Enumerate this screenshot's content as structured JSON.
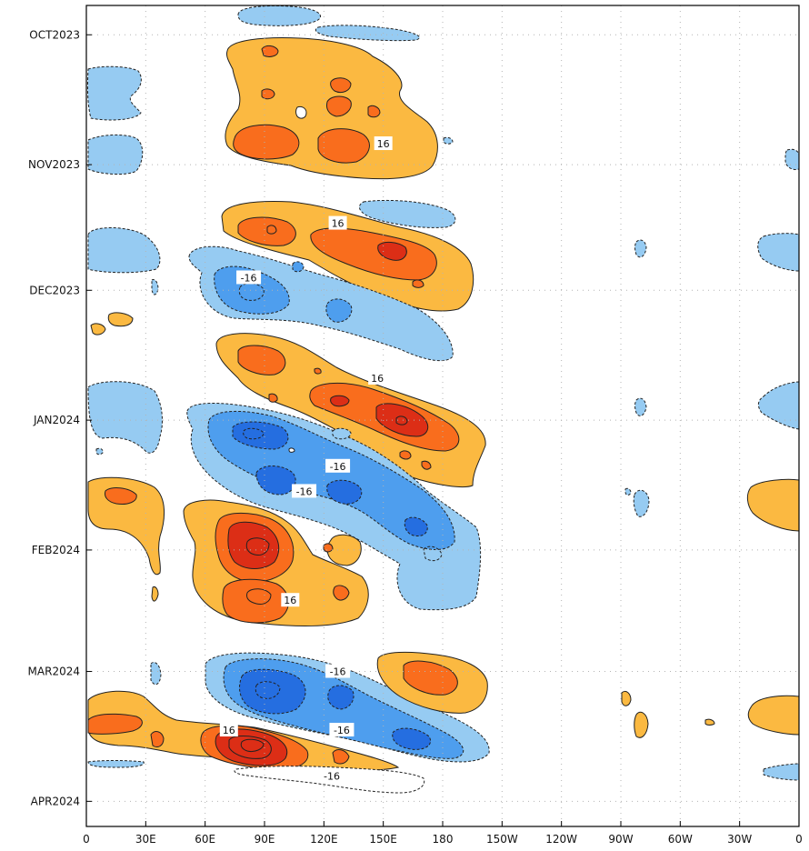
{
  "chart_data": {
    "type": "heatmap",
    "title": "",
    "xlabel": "",
    "ylabel": "",
    "x_ticks": [
      "0",
      "30E",
      "60E",
      "90E",
      "120E",
      "150E",
      "180",
      "150W",
      "120W",
      "90W",
      "60W",
      "30W",
      "0"
    ],
    "x_tick_degrees_east": [
      0,
      30,
      60,
      90,
      120,
      150,
      180,
      210,
      240,
      270,
      300,
      330,
      360
    ],
    "xlim": [
      0,
      360
    ],
    "y_ticks": [
      "OCT2023",
      "NOV2023",
      "DEC2023",
      "JAN2024",
      "FEB2024",
      "MAR2024",
      "APR2024"
    ],
    "y_tick_dates": [
      "2023-10-01",
      "2023-11-01",
      "2023-12-01",
      "2024-01-01",
      "2024-02-01",
      "2024-03-01",
      "2024-04-01"
    ],
    "ylim": [
      "2023-09-24",
      "2024-04-07"
    ],
    "grid": true,
    "contour_interval": 8,
    "contour_labels": [
      {
        "text": "16",
        "lon": 150,
        "date": "2023-10-27"
      },
      {
        "text": "16",
        "lon": 127,
        "date": "2023-11-15"
      },
      {
        "text": "-16",
        "lon": 82,
        "date": "2023-11-28"
      },
      {
        "text": "16",
        "lon": 147,
        "date": "2023-12-22"
      },
      {
        "text": "-16",
        "lon": 127,
        "date": "2024-01-12"
      },
      {
        "text": "-16",
        "lon": 110,
        "date": "2024-01-18"
      },
      {
        "text": "16",
        "lon": 103,
        "date": "2024-02-13"
      },
      {
        "text": "-16",
        "lon": 127,
        "date": "2024-03-01"
      },
      {
        "text": "-16",
        "lon": 129,
        "date": "2024-03-15"
      },
      {
        "text": "16",
        "lon": 72,
        "date": "2024-03-15"
      },
      {
        "text": "-16",
        "lon": 124,
        "date": "2024-03-26"
      }
    ],
    "colors": {
      "pos_1": "#fbb941",
      "pos_2": "#f96d1d",
      "pos_3": "#dc2e16",
      "neg_1": "#96cbf2",
      "neg_2": "#4e9eee",
      "neg_3": "#256ee0"
    },
    "features": [
      {
        "level": 1,
        "lon": 92,
        "date": "2023-10-08",
        "width": 38,
        "days": 7
      },
      {
        "level": 1,
        "lon": 103,
        "date": "2023-10-19",
        "width": 80,
        "days": 20
      },
      {
        "level": 2,
        "lon": 77,
        "date": "2023-10-25",
        "width": 16,
        "days": 4
      },
      {
        "level": 2,
        "lon": 106,
        "date": "2023-10-26",
        "width": 14,
        "days": 4
      },
      {
        "level": 1,
        "lon": 145,
        "date": "2023-11-17",
        "width": 110,
        "days": 10
      },
      {
        "level": 2,
        "lon": 150,
        "date": "2023-11-20",
        "width": 55,
        "days": 5
      },
      {
        "level": -1,
        "lon": 105,
        "date": "2023-12-01",
        "width": 110,
        "days": 12
      },
      {
        "level": -2,
        "lon": 78,
        "date": "2023-11-30",
        "width": 22,
        "days": 4
      },
      {
        "level": 1,
        "lon": 150,
        "date": "2023-12-26",
        "width": 120,
        "days": 14
      },
      {
        "level": 2,
        "lon": 155,
        "date": "2023-12-28",
        "width": 58,
        "days": 6
      },
      {
        "level": -1,
        "lon": 132,
        "date": "2024-01-17",
        "width": 130,
        "days": 24
      },
      {
        "level": -2,
        "lon": 90,
        "date": "2024-01-06",
        "width": 30,
        "days": 4
      },
      {
        "level": 1,
        "lon": 95,
        "date": "2024-02-06",
        "width": 70,
        "days": 22
      },
      {
        "level": 2,
        "lon": 75,
        "date": "2024-02-01",
        "width": 20,
        "days": 8
      },
      {
        "level": -1,
        "lon": 140,
        "date": "2024-03-12",
        "width": 140,
        "days": 18
      },
      {
        "level": 1,
        "lon": 148,
        "date": "2024-03-03",
        "width": 45,
        "days": 8
      },
      {
        "level": 1,
        "lon": 80,
        "date": "2024-03-20",
        "width": 120,
        "days": 12
      },
      {
        "level": 3,
        "lon": 72,
        "date": "2024-03-20",
        "width": 12,
        "days": 3
      }
    ]
  }
}
